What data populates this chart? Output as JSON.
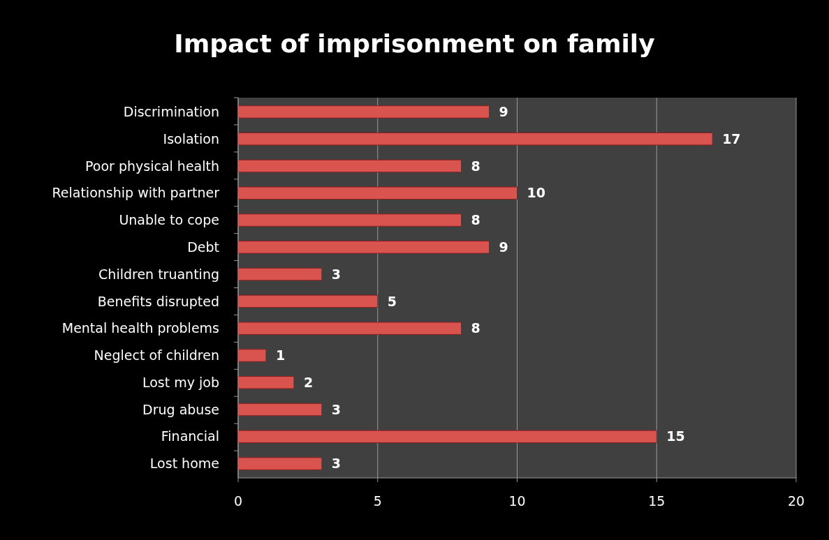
{
  "chart_data": {
    "type": "bar",
    "title": "Impact of imprisonment on family",
    "orientation": "horizontal",
    "categories": [
      "Discrimination",
      "Isolation",
      "Poor physical health",
      "Relationship with partner",
      "Unable to cope",
      "Debt",
      "Children truanting",
      "Benefits disrupted",
      "Mental health problems",
      "Neglect of children",
      "Lost my job",
      "Drug abuse",
      "Financial",
      "Lost home"
    ],
    "values": [
      9,
      17,
      8,
      10,
      8,
      9,
      3,
      5,
      8,
      1,
      2,
      3,
      15,
      3
    ],
    "color": "#d9534f",
    "xlim": [
      0,
      20
    ],
    "xticks": [
      0,
      5,
      10,
      15,
      20
    ],
    "grid": "x",
    "data_labels": true
  }
}
